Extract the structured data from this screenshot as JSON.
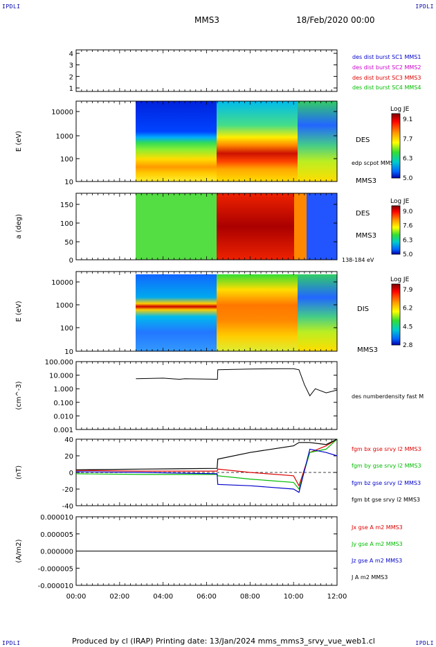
{
  "corners": {
    "tl": "IPDLI",
    "tr": "IPDLI",
    "bl": "IPDLI",
    "br": "IPDLI"
  },
  "header": {
    "spacecraft": "MMS3",
    "date": "18/Feb/2020 00:00"
  },
  "footer": {
    "text": "Produced by cl (IRAP)   Printing date: 13/Jan/2024   mms_mms3_srvy_vue_web1.cl"
  },
  "colors": {
    "blue": "#0000cc",
    "magenta": "#cc00cc",
    "red": "#dd0000",
    "green": "#00bb00",
    "black": "#000000"
  },
  "chart_data": [
    {
      "type": "line",
      "panel": "availability",
      "yticks": [
        "4",
        "3",
        "2",
        "1"
      ],
      "legend": [
        {
          "label": "des dist burst SC1 MMS1",
          "color": "#0000cc"
        },
        {
          "label": "des dist burst SC2 MMS2",
          "color": "#cc00cc"
        },
        {
          "label": "des dist burst SC3 MMS3",
          "color": "#dd0000"
        },
        {
          "label": "des dist burst SC4 MMS4",
          "color": "#00bb00"
        }
      ]
    },
    {
      "type": "heatmap",
      "panel": "des-energy",
      "ylabel": "E (eV)",
      "yscale": "log",
      "ylim": [
        10,
        30000
      ],
      "yticks": [
        "10000",
        "1000",
        "100",
        "10"
      ],
      "side_labels": [
        "DES",
        "edp scpot MMS3",
        "MMS3"
      ],
      "colorbar": {
        "title": "Log JE",
        "ticks": [
          "9.1",
          "7.7",
          "6.3",
          "5.0"
        ],
        "range": [
          5.0,
          9.1
        ]
      },
      "data_start": "02:45",
      "intervals": [
        {
          "from": "02:45",
          "to": "06:30",
          "description": "low energy warm, high energy blue"
        },
        {
          "from": "06:30",
          "to": "10:30",
          "description": "red band near 100 eV"
        },
        {
          "from": "10:30",
          "to": "12:00",
          "description": "mixed, striated"
        }
      ]
    },
    {
      "type": "heatmap",
      "panel": "des-pitch-angle",
      "ylabel": "a (deg)",
      "ylim": [
        0,
        180
      ],
      "yticks": [
        "150",
        "100",
        "50",
        "0"
      ],
      "side_labels": [
        "DES",
        "MMS3",
        "138-184 eV"
      ],
      "colorbar": {
        "title": "Log JE",
        "ticks": [
          "9.0",
          "7.6",
          "6.3",
          "5.0"
        ],
        "range": [
          5.0,
          9.0
        ]
      }
    },
    {
      "type": "heatmap",
      "panel": "dis-energy",
      "ylabel": "E (eV)",
      "yscale": "log",
      "ylim": [
        10,
        20000
      ],
      "yticks": [
        "10000",
        "1000",
        "100",
        "10"
      ],
      "side_labels": [
        "DIS",
        "MMS3"
      ],
      "colorbar": {
        "title": "Log JE",
        "ticks": [
          "7.9",
          "6.2",
          "4.5",
          "2.8"
        ],
        "range": [
          2.8,
          7.9
        ]
      }
    },
    {
      "type": "line",
      "panel": "density",
      "ylabel": "(cm^-3)",
      "yscale": "log",
      "ylim": [
        0.001,
        100
      ],
      "yticks": [
        "100.000",
        "10.000",
        "1.000",
        "0.100",
        "0.010",
        "0.001"
      ],
      "legend": [
        {
          "label": "des numberdensity fast M",
          "color": "#000000"
        }
      ],
      "series": [
        {
          "name": "des numberdensity fast M",
          "x": [
            "02:45",
            "04:00",
            "04:45",
            "05:00",
            "06:30",
            "06:31",
            "08:00",
            "09:30",
            "10:00",
            "10:15",
            "10:30",
            "10:45",
            "11:00",
            "11:30",
            "12:00"
          ],
          "y": [
            5.5,
            6,
            5,
            5.5,
            5,
            25,
            28,
            30,
            30,
            25,
            2,
            0.3,
            1,
            0.5,
            0.8
          ]
        }
      ]
    },
    {
      "type": "line",
      "panel": "magnetic-field",
      "ylabel": "(nT)",
      "ylim": [
        -50,
        50
      ],
      "yticks": [
        "40",
        "20",
        "0",
        "-20",
        "-40"
      ],
      "legend": [
        {
          "label": "fgm bx gse srvy l2 MMS3",
          "color": "#dd0000"
        },
        {
          "label": "fgm by gse srvy l2 MMS3",
          "color": "#00bb00"
        },
        {
          "label": "fgm bz gse srvy l2 MMS3",
          "color": "#0000cc"
        },
        {
          "label": "fgm bt gse srvy l2 MMS3",
          "color": "#000000"
        }
      ],
      "series": [
        {
          "name": "fgm bx gse srvy l2 MMS3",
          "x": [
            "00:00",
            "03:00",
            "06:29",
            "06:31",
            "08:00",
            "10:00",
            "10:15",
            "10:45",
            "11:30",
            "12:00"
          ],
          "y": [
            3,
            2,
            2,
            5,
            0,
            -5,
            -20,
            30,
            40,
            50
          ]
        },
        {
          "name": "fgm by gse srvy l2 MMS3",
          "x": [
            "00:00",
            "03:00",
            "06:29",
            "06:31",
            "08:00",
            "10:00",
            "10:15",
            "10:45",
            "11:30",
            "12:00"
          ],
          "y": [
            -2,
            -3,
            -3,
            -5,
            -10,
            -15,
            -25,
            30,
            35,
            50
          ]
        },
        {
          "name": "fgm bz gse srvy l2 MMS3",
          "x": [
            "00:00",
            "03:00",
            "06:29",
            "06:31",
            "08:00",
            "10:00",
            "10:15",
            "10:45",
            "11:30",
            "12:00"
          ],
          "y": [
            1,
            0,
            -2,
            -18,
            -20,
            -25,
            -30,
            35,
            30,
            25
          ]
        },
        {
          "name": "fgm bt gse srvy l2 MMS3",
          "x": [
            "00:00",
            "03:00",
            "06:29",
            "06:31",
            "08:00",
            "10:00",
            "10:15",
            "10:45",
            "11:30",
            "12:00"
          ],
          "y": [
            4,
            5,
            6,
            20,
            30,
            40,
            45,
            45,
            42,
            50
          ]
        }
      ]
    },
    {
      "type": "line",
      "panel": "current-density",
      "ylabel": "(A/m2)",
      "ylim": [
        -0.0001,
        0.0001
      ],
      "yticks": [
        "0.000010",
        "0.000005",
        "0.000000",
        "-0.000005",
        "-0.000010"
      ],
      "legend": [
        {
          "label": "Jx gse A m2 MMS3",
          "color": "#dd0000"
        },
        {
          "label": "Jy gse A m2 MMS3",
          "color": "#00bb00"
        },
        {
          "label": "Jz gse A m2 MMS3",
          "color": "#0000cc"
        },
        {
          "label": "J A m2 MMS3",
          "color": "#000000"
        }
      ]
    }
  ],
  "xaxis": {
    "ticks": [
      "00:00",
      "02:00",
      "04:00",
      "06:00",
      "08:00",
      "10:00",
      "12:00"
    ]
  }
}
